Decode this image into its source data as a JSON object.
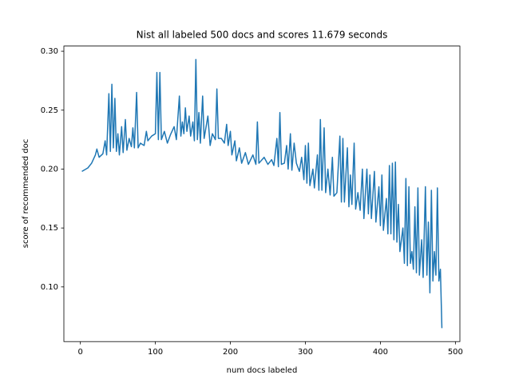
{
  "chart_data": {
    "type": "line",
    "title": "Nist all labeled 500 docs and scores 11.679 seconds",
    "xlabel": "num docs labeled",
    "ylabel": "score of recommended doc",
    "color": "#1f77b4",
    "x": [
      2,
      10,
      15,
      20,
      22,
      25,
      30,
      33,
      35,
      38,
      40,
      42,
      44,
      46,
      48,
      50,
      52,
      55,
      57,
      60,
      62,
      65,
      68,
      70,
      72,
      75,
      77,
      80,
      85,
      88,
      90,
      95,
      100,
      102,
      104,
      106,
      108,
      112,
      116,
      120,
      125,
      128,
      132,
      134,
      136,
      138,
      140,
      142,
      145,
      147,
      150,
      152,
      154,
      156,
      158,
      160,
      163,
      165,
      170,
      173,
      176,
      180,
      182,
      184,
      188,
      192,
      195,
      197,
      200,
      202,
      206,
      208,
      212,
      215,
      220,
      224,
      230,
      234,
      236,
      238,
      245,
      250,
      255,
      258,
      262,
      264,
      266,
      268,
      272,
      275,
      277,
      280,
      282,
      285,
      288,
      292,
      295,
      298,
      300,
      302,
      304,
      306,
      310,
      312,
      316,
      318,
      320,
      322,
      325,
      327,
      330,
      333,
      336,
      338,
      342,
      346,
      348,
      350,
      352,
      356,
      358,
      360,
      362,
      365,
      367,
      370,
      373,
      376,
      378,
      382,
      384,
      386,
      388,
      392,
      394,
      398,
      400,
      402,
      404,
      408,
      410,
      412,
      414,
      416,
      418,
      420,
      422,
      424,
      426,
      430,
      432,
      434,
      436,
      438,
      440,
      442,
      444,
      446,
      448,
      450,
      452,
      455,
      457,
      460,
      462,
      464,
      466,
      468,
      470,
      472,
      474,
      476,
      478,
      480,
      482
    ],
    "values": [
      0.198,
      0.201,
      0.205,
      0.212,
      0.217,
      0.21,
      0.213,
      0.224,
      0.212,
      0.264,
      0.215,
      0.272,
      0.218,
      0.26,
      0.215,
      0.23,
      0.212,
      0.236,
      0.214,
      0.242,
      0.216,
      0.226,
      0.219,
      0.235,
      0.218,
      0.265,
      0.218,
      0.222,
      0.22,
      0.232,
      0.224,
      0.228,
      0.23,
      0.282,
      0.225,
      0.282,
      0.225,
      0.232,
      0.222,
      0.229,
      0.236,
      0.225,
      0.262,
      0.228,
      0.24,
      0.23,
      0.252,
      0.232,
      0.245,
      0.228,
      0.24,
      0.224,
      0.293,
      0.225,
      0.248,
      0.222,
      0.262,
      0.226,
      0.245,
      0.22,
      0.23,
      0.225,
      0.268,
      0.226,
      0.226,
      0.222,
      0.238,
      0.22,
      0.232,
      0.212,
      0.224,
      0.207,
      0.218,
      0.205,
      0.214,
      0.204,
      0.212,
      0.204,
      0.24,
      0.205,
      0.21,
      0.204,
      0.208,
      0.203,
      0.226,
      0.202,
      0.248,
      0.204,
      0.205,
      0.22,
      0.2,
      0.23,
      0.199,
      0.222,
      0.205,
      0.198,
      0.21,
      0.191,
      0.22,
      0.188,
      0.222,
      0.186,
      0.2,
      0.184,
      0.212,
      0.182,
      0.242,
      0.182,
      0.235,
      0.18,
      0.2,
      0.178,
      0.21,
      0.177,
      0.18,
      0.228,
      0.172,
      0.226,
      0.172,
      0.218,
      0.168,
      0.195,
      0.17,
      0.222,
      0.166,
      0.18,
      0.165,
      0.2,
      0.158,
      0.2,
      0.162,
      0.195,
      0.158,
      0.198,
      0.155,
      0.185,
      0.152,
      0.195,
      0.148,
      0.175,
      0.145,
      0.203,
      0.145,
      0.205,
      0.14,
      0.206,
      0.138,
      0.17,
      0.13,
      0.15,
      0.12,
      0.192,
      0.118,
      0.185,
      0.12,
      0.13,
      0.115,
      0.168,
      0.112,
      0.184,
      0.11,
      0.14,
      0.108,
      0.185,
      0.11,
      0.155,
      0.095,
      0.182,
      0.105,
      0.13,
      0.11,
      0.184,
      0.105,
      0.115,
      0.065
    ],
    "xlim": [
      -22,
      506
    ],
    "xticks": [
      0,
      100,
      200,
      300,
      400,
      500
    ],
    "ylim": [
      0.0536,
      0.3044
    ],
    "yticks": [
      {
        "value": 0.1,
        "label": "0.10"
      },
      {
        "value": 0.15,
        "label": "0.15"
      },
      {
        "value": 0.2,
        "label": "0.20"
      },
      {
        "value": 0.25,
        "label": "0.25"
      },
      {
        "value": 0.3,
        "label": "0.30"
      }
    ]
  }
}
